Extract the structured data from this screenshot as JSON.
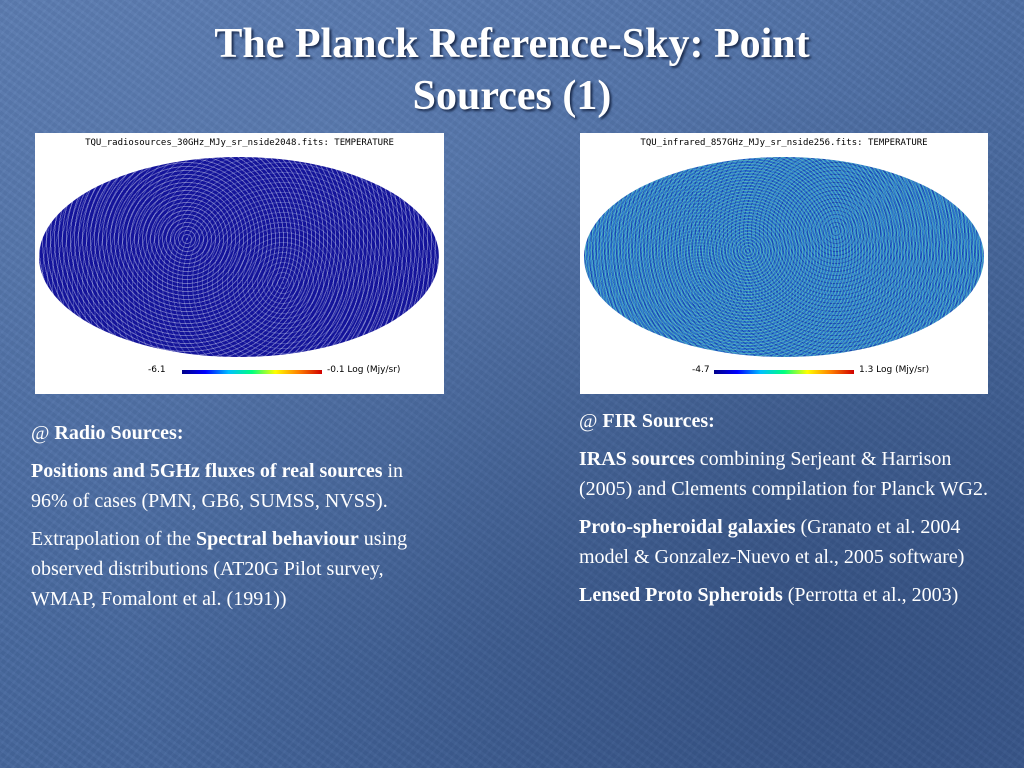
{
  "title": {
    "line1": "The Planck Reference-Sky: Point",
    "line2": "Sources (1)"
  },
  "images": {
    "left": {
      "label": "TQU_radiosources_30GHz_MJy_sr_nside2048.fits: TEMPERATURE",
      "min": "-6.1",
      "max": "-0.1 Log (Mjy/sr)"
    },
    "right": {
      "label": "TQU_infrared_857GHz_MJy_sr_nside256.fits: TEMPERATURE",
      "min": "-4.7",
      "max": "1.3 Log (Mjy/sr)"
    }
  },
  "left": {
    "heading": {
      "bullet": "@ ",
      "text": "Radio Sources:"
    },
    "p1": {
      "bold": "Positions and 5GHz fluxes of real sources",
      "rest": " in 96% of cases (PMN, GB6, SUMSS, NVSS)."
    },
    "p2": {
      "pre": "Extrapolation of the ",
      "bold": "Spectral behaviour",
      "rest": " using observed distributions (AT20G Pilot survey, WMAP, Fomalont et al. (1991))"
    }
  },
  "right": {
    "heading": {
      "bullet": "@ ",
      "text": "FIR Sources:"
    },
    "p1": {
      "bold": "IRAS sources",
      "rest": " combining Serjeant & Harrison (2005) and Clements compilation for Planck WG2."
    },
    "p2": {
      "bold": "Proto-spheroidal galaxies",
      "rest": " (Granato et al. 2004 model & Gonzalez-Nuevo et al., 2005 software)"
    },
    "p3": {
      "bold": "Lensed Proto Spheroids",
      "rest": " (Perrotta et al., 2003)"
    }
  }
}
